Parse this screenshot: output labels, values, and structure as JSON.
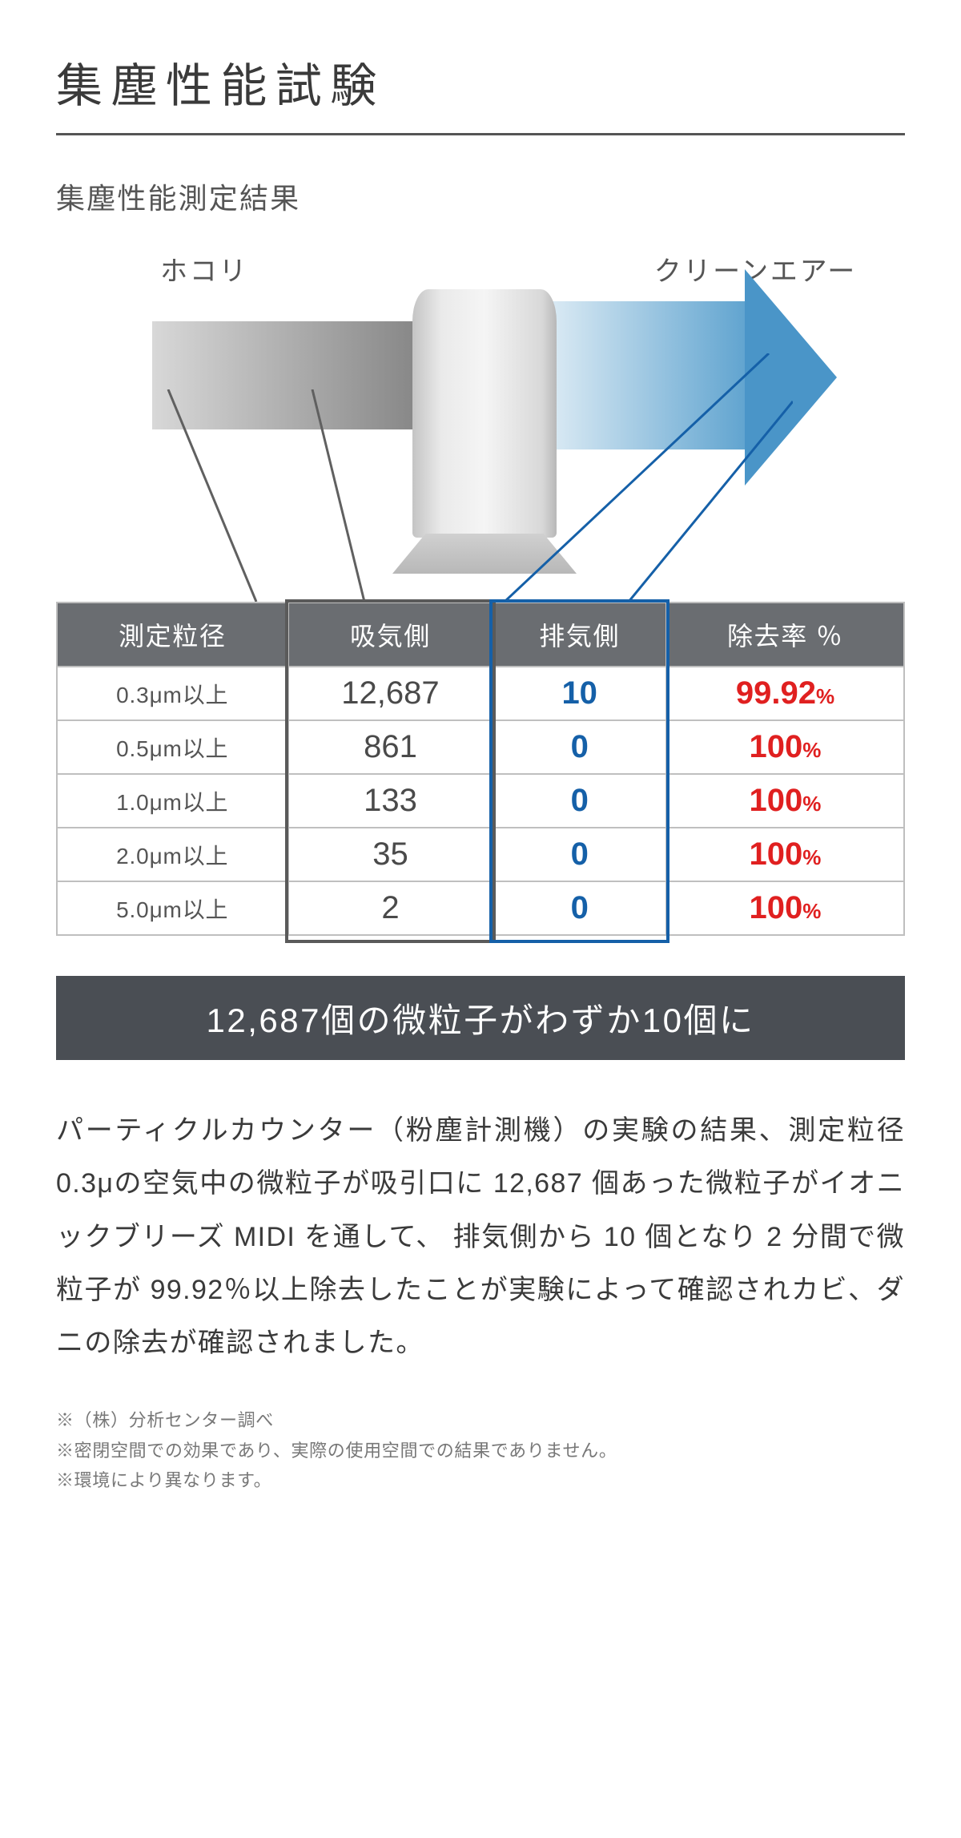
{
  "title": "集塵性能試験",
  "subtitle": "集塵性能測定結果",
  "diagram": {
    "dust_label": "ホコリ",
    "clean_label": "クリーンエアー",
    "dust_color_start": "#d8d8d8",
    "dust_color_end": "#868686",
    "clean_color_start": "#e8f2f8",
    "clean_color_end": "#5fa3cf",
    "arrow_color": "#4a95c8",
    "callout_left_color": "#606060",
    "callout_right_color": "#1560a8"
  },
  "table": {
    "header_bg": "#6a6d71",
    "header_fg": "#ffffff",
    "border_color": "#bfbfbf",
    "intake_text_color": "#4a4a4a",
    "exhaust_text_color": "#1560a8",
    "rate_text_color": "#e02020",
    "highlight_grey": "#5a5a5a",
    "highlight_blue": "#1560a8",
    "columns": [
      "測定粒径",
      "吸気側",
      "排気側",
      "除去率 ％"
    ],
    "rows": [
      {
        "size": "0.3μm以上",
        "intake": "12,687",
        "exhaust": "10",
        "rate": "99.92",
        "rate_unit": "%"
      },
      {
        "size": "0.5μm以上",
        "intake": "861",
        "exhaust": "0",
        "rate": "100",
        "rate_unit": "%"
      },
      {
        "size": "1.0μm以上",
        "intake": "133",
        "exhaust": "0",
        "rate": "100",
        "rate_unit": "%"
      },
      {
        "size": "2.0μm以上",
        "intake": "35",
        "exhaust": "0",
        "rate": "100",
        "rate_unit": "%"
      },
      {
        "size": "5.0μm以上",
        "intake": "2",
        "exhaust": "0",
        "rate": "100",
        "rate_unit": "%"
      }
    ]
  },
  "summary_banner": "12,687個の微粒子がわずか10個に",
  "body_text": "パーティクルカウンター（粉塵計測機）の実験の結果、測定粒径 0.3μの空気中の微粒子が吸引口に 12,687 個あった微粒子がイオニックブリーズ MIDI を通して、 排気側から 10 個となり 2 分間で微粒子が 99.92％以上除去したことが実験によって確認されカビ、ダニの除去が確認されました。",
  "footnotes": [
    "※（株）分析センター調べ",
    "※密閉空間での効果であり、実際の使用空間での結果でありません。",
    "※環境により異なります。"
  ],
  "colors": {
    "title_color": "#3a3a3a",
    "title_rule": "#555555",
    "banner_bg": "#4a4e54",
    "banner_fg": "#ffffff",
    "body_color": "#3a3a3a",
    "footnote_color": "#777777"
  }
}
